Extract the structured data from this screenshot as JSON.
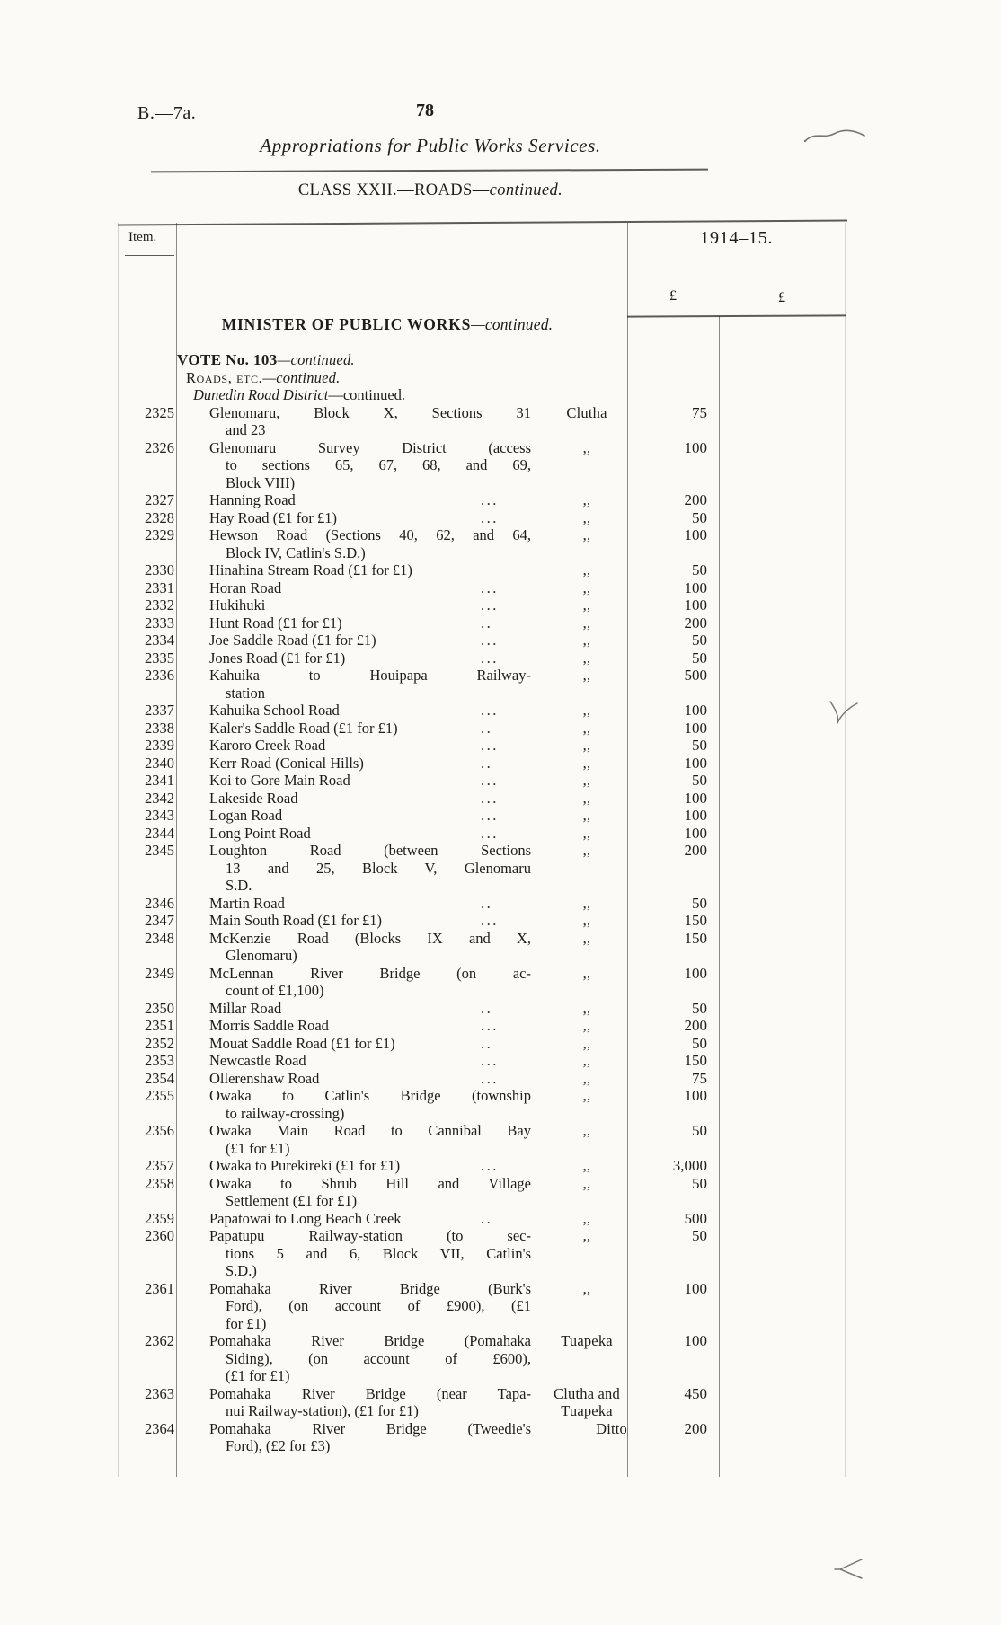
{
  "page": {
    "doc_ref": "B.—7a.",
    "page_number": "78",
    "running_title": "Appropriations for Public Works Services.",
    "section_heading_main": "CLASS XXII.—ROADS—",
    "section_heading_cont": "continued."
  },
  "table": {
    "item_header": "Item.",
    "year_header": "1914–15.",
    "pound_col1": "£",
    "pound_col2": "£",
    "group_heading_main": "MINISTER OF PUBLIC WORKS",
    "group_heading_cont": "—continued.",
    "vote_heading_main": "VOTE No. 103",
    "vote_heading_cont": "—continued.",
    "roads_heading_main": "Roads, etc.",
    "roads_heading_cont": "—continued.",
    "district_heading_main": "Dunedin Road District",
    "district_heading_cont": "—continued.",
    "rows": [
      {
        "item": "2325",
        "lines": [
          "Glenomaru, Block X, Sections 31",
          "and 23"
        ],
        "leader": "",
        "county": "Clutha",
        "amount": "75"
      },
      {
        "item": "2326",
        "lines": [
          "Glenomaru Survey District (access",
          "to sections 65, 67, 68, and 69,",
          "Block VIII)"
        ],
        "leader": "",
        "county": ",,",
        "amount": "100"
      },
      {
        "item": "2327",
        "lines": [
          "Hanning Road"
        ],
        "leader": "...",
        "county": ",,",
        "amount": "200"
      },
      {
        "item": "2328",
        "lines": [
          "Hay Road (£1 for £1)"
        ],
        "leader": "...",
        "county": ",,",
        "amount": "50"
      },
      {
        "item": "2329",
        "lines": [
          "Hewson Road (Sections 40, 62, and 64,",
          "Block IV, Catlin's S.D.)"
        ],
        "leader": "",
        "county": ",,",
        "amount": "100"
      },
      {
        "item": "2330",
        "lines": [
          "Hinahina Stream Road (£1 for £1)"
        ],
        "leader": "",
        "county": ",,",
        "amount": "50"
      },
      {
        "item": "2331",
        "lines": [
          "Horan Road"
        ],
        "leader": "...",
        "county": ",,",
        "amount": "100"
      },
      {
        "item": "2332",
        "lines": [
          "Hukihuki"
        ],
        "leader": "...",
        "county": ",,",
        "amount": "100"
      },
      {
        "item": "2333",
        "lines": [
          "Hunt Road (£1 for £1)"
        ],
        "leader": "..",
        "county": ",,",
        "amount": "200"
      },
      {
        "item": "2334",
        "lines": [
          "Joe Saddle Road (£1 for £1)"
        ],
        "leader": "...",
        "county": ",,",
        "amount": "50"
      },
      {
        "item": "2335",
        "lines": [
          "Jones Road (£1 for £1)"
        ],
        "leader": "...",
        "county": ",,",
        "amount": "50"
      },
      {
        "item": "2336",
        "lines": [
          "Kahuika to Houipapa Railway-",
          "station"
        ],
        "leader": "",
        "county": ",,",
        "amount": "500"
      },
      {
        "item": "2337",
        "lines": [
          "Kahuika School Road"
        ],
        "leader": "...",
        "county": ",,",
        "amount": "100"
      },
      {
        "item": "2338",
        "lines": [
          "Kaler's Saddle Road (£1 for £1)"
        ],
        "leader": "..",
        "county": ",,",
        "amount": "100"
      },
      {
        "item": "2339",
        "lines": [
          "Karoro Creek Road"
        ],
        "leader": "...",
        "county": ",,",
        "amount": "50"
      },
      {
        "item": "2340",
        "lines": [
          "Kerr Road (Conical Hills)"
        ],
        "leader": "..",
        "county": ",,",
        "amount": "100"
      },
      {
        "item": "2341",
        "lines": [
          "Koi to Gore Main Road"
        ],
        "leader": "...",
        "county": ",,",
        "amount": "50"
      },
      {
        "item": "2342",
        "lines": [
          "Lakeside Road"
        ],
        "leader": "...",
        "county": ",,",
        "amount": "100"
      },
      {
        "item": "2343",
        "lines": [
          "Logan Road"
        ],
        "leader": "...",
        "county": ",,",
        "amount": "100"
      },
      {
        "item": "2344",
        "lines": [
          "Long Point Road"
        ],
        "leader": "...",
        "county": ",,",
        "amount": "100"
      },
      {
        "item": "2345",
        "lines": [
          "Loughton Road (between Sections",
          "13 and 25, Block V, Glenomaru",
          "S.D."
        ],
        "leader": "",
        "county": ",,",
        "amount": "200"
      },
      {
        "item": "2346",
        "lines": [
          "Martin Road"
        ],
        "leader": "..",
        "county": ",,",
        "amount": "50"
      },
      {
        "item": "2347",
        "lines": [
          "Main South Road (£1 for £1)"
        ],
        "leader": "...",
        "county": ",,",
        "amount": "150"
      },
      {
        "item": "2348",
        "lines": [
          "McKenzie Road (Blocks IX and X,",
          "Glenomaru)"
        ],
        "leader": "",
        "county": ",,",
        "amount": "150"
      },
      {
        "item": "2349",
        "lines": [
          "McLennan River Bridge (on ac-",
          "count of £1,100)"
        ],
        "leader": "",
        "county": ",,",
        "amount": "100"
      },
      {
        "item": "2350",
        "lines": [
          "Millar Road"
        ],
        "leader": "..",
        "county": ",,",
        "amount": "50"
      },
      {
        "item": "2351",
        "lines": [
          "Morris Saddle Road"
        ],
        "leader": "...",
        "county": ",,",
        "amount": "200"
      },
      {
        "item": "2352",
        "lines": [
          "Mouat Saddle Road (£1 for £1)"
        ],
        "leader": "..",
        "county": ",,",
        "amount": "50"
      },
      {
        "item": "2353",
        "lines": [
          "Newcastle Road"
        ],
        "leader": "...",
        "county": ",,",
        "amount": "150"
      },
      {
        "item": "2354",
        "lines": [
          "Ollerenshaw Road"
        ],
        "leader": "...",
        "county": ",,",
        "amount": "75"
      },
      {
        "item": "2355",
        "lines": [
          "Owaka to Catlin's Bridge (township",
          "to railway-crossing)"
        ],
        "leader": "",
        "county": ",,",
        "amount": "100"
      },
      {
        "item": "2356",
        "lines": [
          "Owaka Main Road to Cannibal Bay",
          "(£1 for £1)"
        ],
        "leader": "",
        "county": ",,",
        "amount": "50"
      },
      {
        "item": "2357",
        "lines": [
          "Owaka to Purekireki (£1 for £1)"
        ],
        "leader": "...",
        "county": ",,",
        "amount": "3,000"
      },
      {
        "item": "2358",
        "lines": [
          "Owaka to Shrub Hill and Village",
          "Settlement (£1 for £1)"
        ],
        "leader": "",
        "county": ",,",
        "amount": "50"
      },
      {
        "item": "2359",
        "lines": [
          "Papatowai to Long Beach Creek"
        ],
        "leader": "..",
        "county": ",,",
        "amount": "500"
      },
      {
        "item": "2360",
        "lines": [
          "Papatupu Railway-station (to sec-",
          "tions 5 and 6, Block VII, Catlin's",
          "S.D.)"
        ],
        "leader": "",
        "county": ",,",
        "amount": "50"
      },
      {
        "item": "2361",
        "lines": [
          "Pomahaka River Bridge (Burk's",
          "Ford), (on account of £900), (£1",
          "for £1)"
        ],
        "leader": "",
        "county": ",,",
        "amount": "100"
      },
      {
        "item": "2362",
        "lines": [
          "Pomahaka River Bridge (Pomahaka",
          "Siding), (on account of £600),",
          "(£1 for £1)"
        ],
        "leader": "",
        "county": "Tuapeka",
        "amount": "100"
      },
      {
        "item": "2363",
        "lines": [
          "Pomahaka River Bridge (near Tapa-",
          "nui Railway-station), (£1 for £1)"
        ],
        "leader": "",
        "county": "Clutha and Tuapeka",
        "amount": "450"
      },
      {
        "item": "2364",
        "lines": [
          "Pomahaka River Bridge (Tweedie's",
          "Ford), (£2 for £3)"
        ],
        "leader": "",
        "county": "Ditto",
        "county_align": "right",
        "amount": "200"
      }
    ]
  }
}
